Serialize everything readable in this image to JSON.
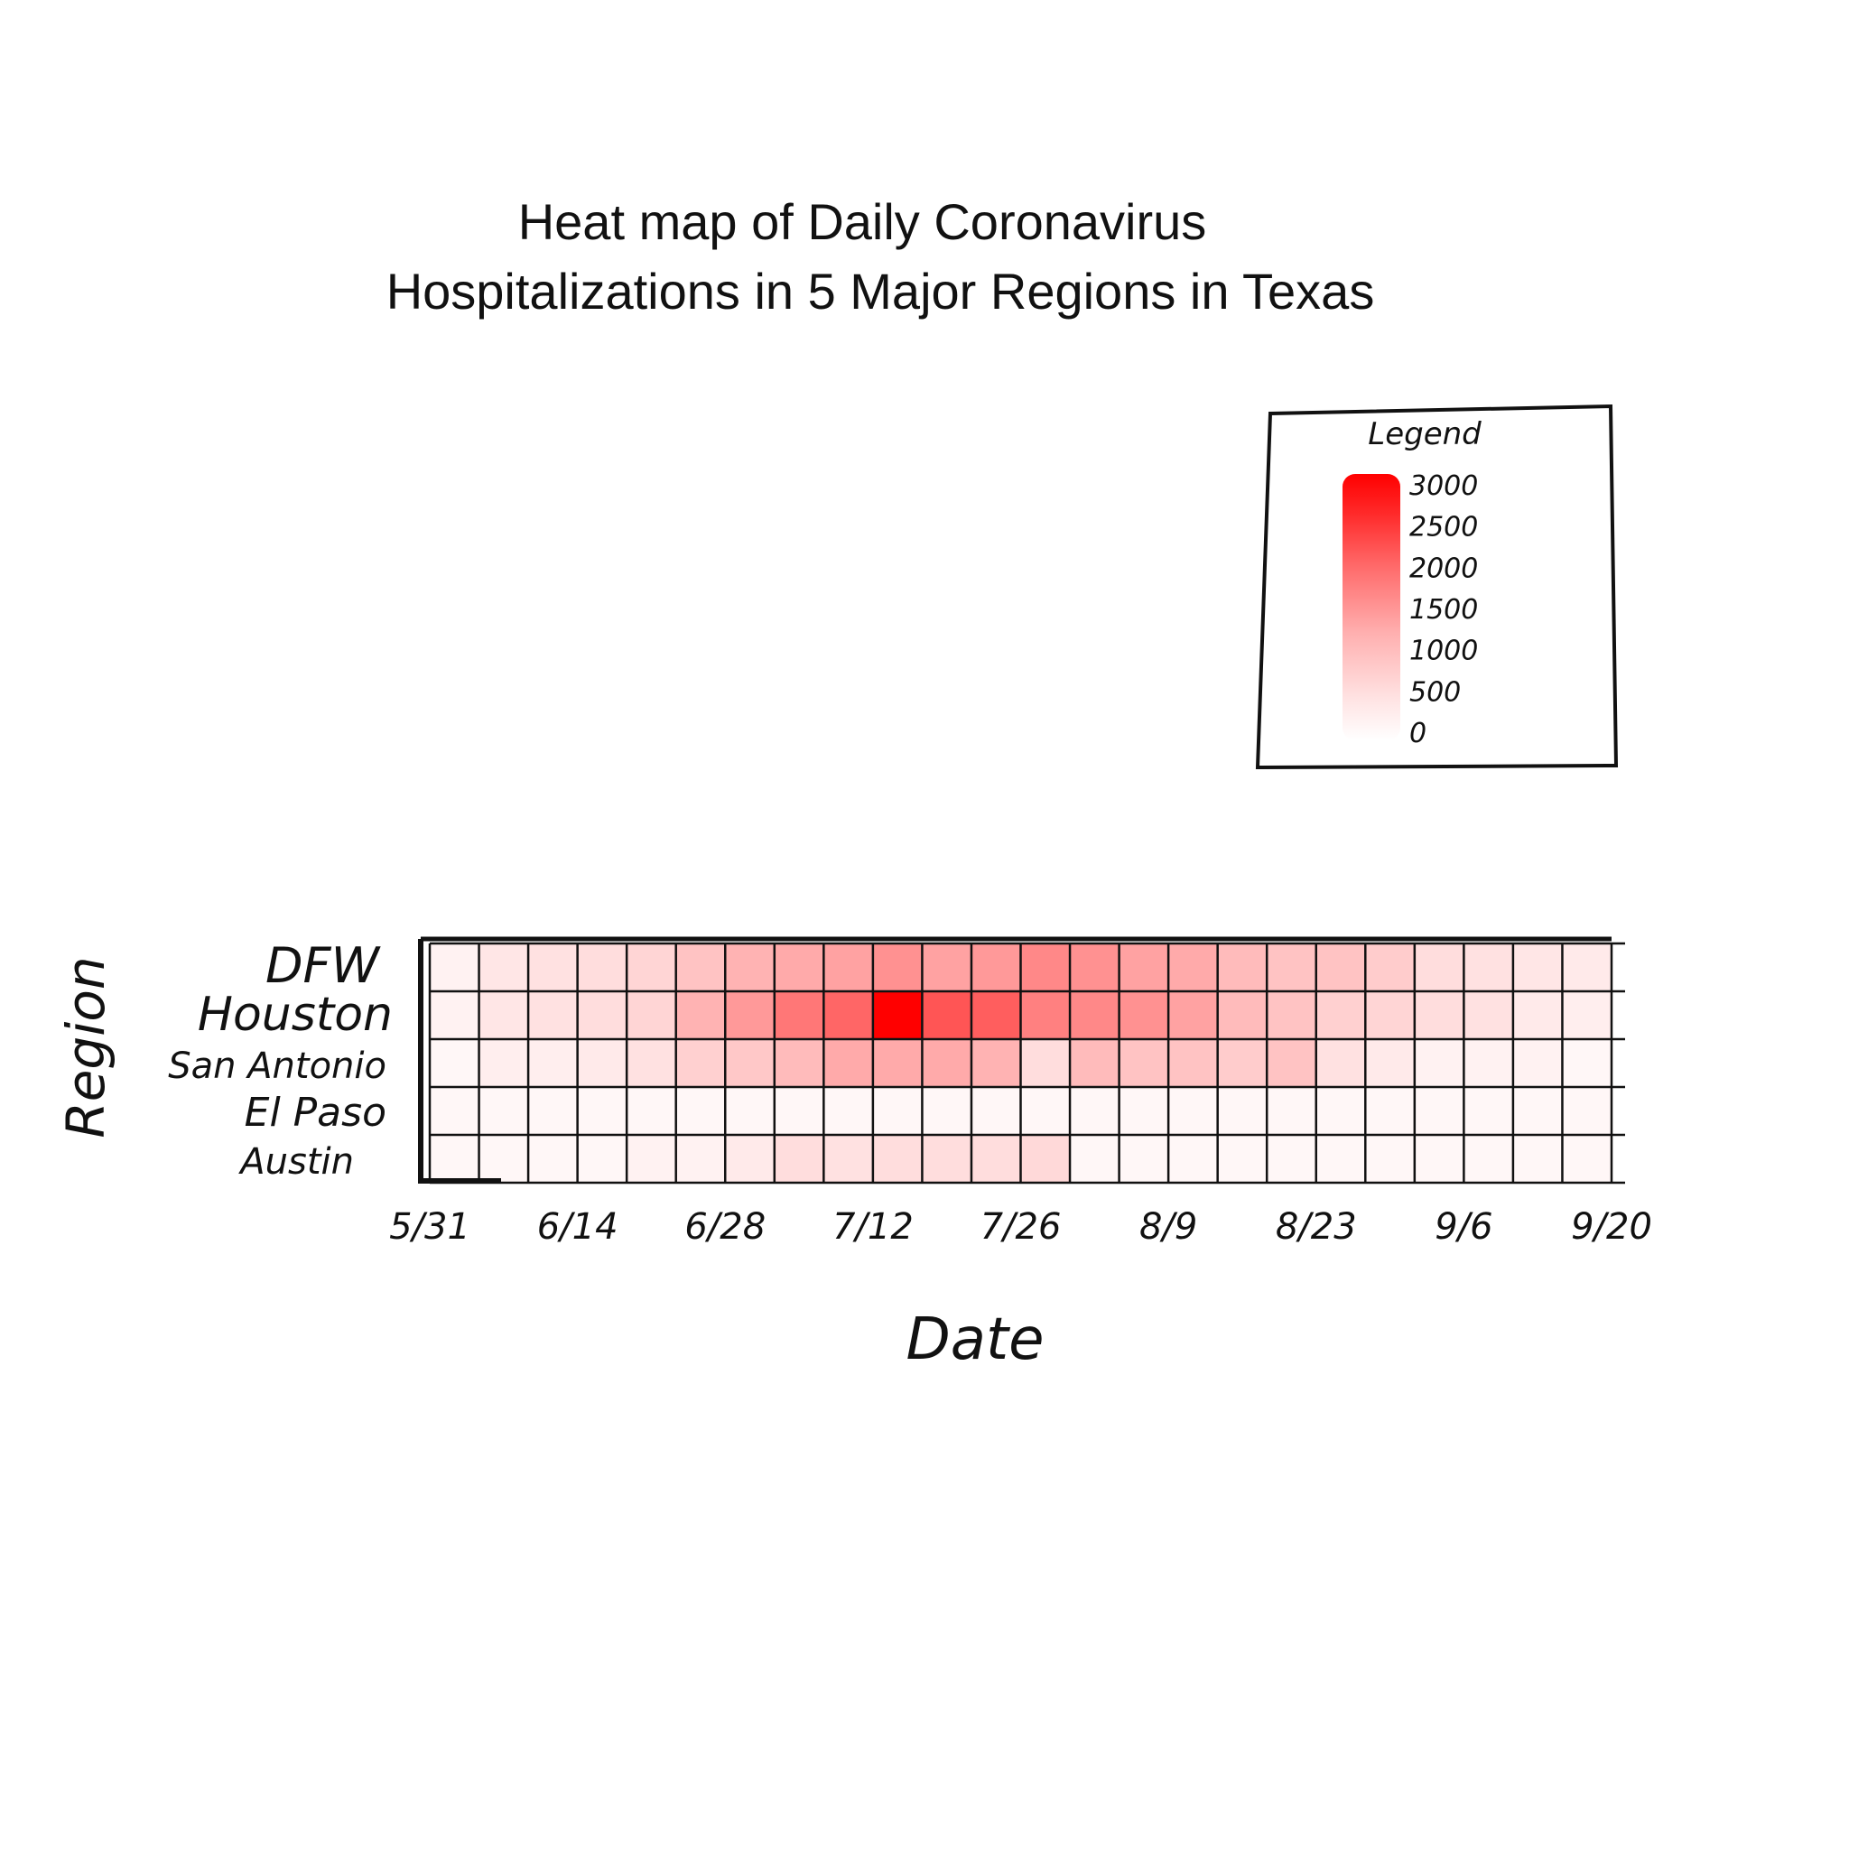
{
  "chart_data": {
    "type": "heatmap",
    "title_line1": "Heat map of Daily Coronavirus",
    "title_line2": "Hospitalizations in 5 Major Regions in Texas",
    "xlabel": "Date",
    "ylabel": "Region",
    "rows": [
      "DFW",
      "Houston",
      "San Antonio",
      "El Paso",
      "Austin"
    ],
    "x_tick_labels": [
      "5/31",
      "6/14",
      "6/28",
      "7/12",
      "7/26",
      "8/9",
      "8/23",
      "9/6",
      "9/20"
    ],
    "value_range": [
      0,
      3000
    ],
    "colors": {
      "low": "#ffffff",
      "high": "#ff0000",
      "grid": "#111111"
    },
    "legend": {
      "title": "Legend",
      "position": "top-right",
      "labels": [
        "3000",
        "2500",
        "2000",
        "1500",
        "1000",
        "500",
        "0"
      ]
    },
    "grid": true,
    "values": [
      [
        150,
        300,
        350,
        400,
        500,
        700,
        900,
        1000,
        1100,
        1300,
        1100,
        1200,
        1400,
        1300,
        1100,
        1000,
        800,
        700,
        700,
        600,
        400,
        350,
        300,
        250
      ],
      [
        150,
        300,
        350,
        400,
        500,
        900,
        1200,
        1600,
        1800,
        3000,
        2000,
        1900,
        1500,
        1400,
        1300,
        1100,
        800,
        700,
        550,
        500,
        400,
        350,
        250,
        200
      ],
      [
        100,
        200,
        200,
        250,
        350,
        550,
        650,
        800,
        1000,
        1000,
        1000,
        900,
        400,
        800,
        700,
        700,
        600,
        700,
        350,
        250,
        150,
        150,
        150,
        100
      ],
      [
        100,
        100,
        100,
        100,
        100,
        100,
        100,
        100,
        100,
        100,
        100,
        100,
        100,
        100,
        100,
        100,
        100,
        100,
        100,
        100,
        100,
        100,
        100,
        100
      ],
      [
        100,
        100,
        100,
        100,
        150,
        150,
        250,
        400,
        350,
        400,
        400,
        400,
        450,
        100,
        100,
        100,
        100,
        100,
        100,
        100,
        100,
        100,
        100,
        100
      ]
    ]
  }
}
